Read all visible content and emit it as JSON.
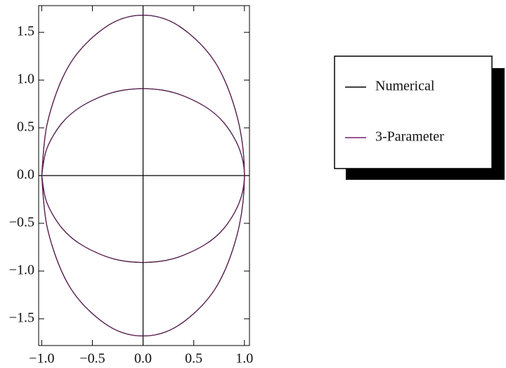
{
  "chart_data": {
    "type": "line",
    "xlim": [
      -1.03,
      1.05
    ],
    "ylim": [
      -1.78,
      1.78
    ],
    "xticks": [
      {
        "value": -1,
        "label": "−1.0"
      },
      {
        "value": -0.5,
        "label": "−0.5"
      },
      {
        "value": 0,
        "label": "0.0"
      },
      {
        "value": 0.5,
        "label": "0.5"
      },
      {
        "value": 1,
        "label": "1.0"
      }
    ],
    "yticks": [
      {
        "value": -1.5,
        "label": "−1.5"
      },
      {
        "value": -1,
        "label": "−1.0"
      },
      {
        "value": -0.5,
        "label": "−0.5"
      },
      {
        "value": 0,
        "label": "0.0"
      },
      {
        "value": 0.5,
        "label": "0.5"
      },
      {
        "value": 1,
        "label": "1.0"
      },
      {
        "value": 1.5,
        "label": "1.5"
      }
    ],
    "legend": "right",
    "series": [
      {
        "name": "Numerical",
        "color": "#000000",
        "x": [
          -1,
          -0.95,
          -0.8,
          -0.6,
          -0.3,
          0,
          0.3,
          0.6,
          0.8,
          0.95,
          1,
          0.95,
          0.8,
          0.6,
          0.3,
          0,
          -0.3,
          -0.6,
          -0.8,
          -0.95,
          -1,
          null,
          -1,
          -0.95,
          -0.8,
          -0.6,
          -0.3,
          0,
          0.3,
          0.6,
          0.8,
          0.95,
          1,
          0.95,
          0.8,
          0.6,
          0.3,
          0,
          -0.3,
          -0.6,
          -0.8,
          -0.95,
          -1
        ],
        "values": [
          0,
          0.52,
          1.01,
          1.34,
          1.6,
          1.68,
          1.6,
          1.34,
          1.01,
          0.52,
          0,
          -0.52,
          -1.01,
          -1.34,
          -1.6,
          -1.68,
          -1.6,
          -1.34,
          -1.01,
          -0.52,
          0,
          null,
          0,
          0.28,
          0.55,
          0.73,
          0.87,
          0.91,
          0.87,
          0.73,
          0.55,
          0.28,
          0,
          -0.28,
          -0.55,
          -0.73,
          -0.87,
          -0.91,
          -0.87,
          -0.73,
          -0.55,
          -0.28,
          0
        ]
      },
      {
        "name": "3-Parameter",
        "color": "#7a1f6e",
        "x": [
          -1,
          -0.95,
          -0.8,
          -0.6,
          -0.3,
          0,
          0.3,
          0.6,
          0.8,
          0.95,
          1,
          0.95,
          0.8,
          0.6,
          0.3,
          0,
          -0.3,
          -0.6,
          -0.8,
          -0.95,
          -1,
          null,
          -1,
          -0.95,
          -0.8,
          -0.6,
          -0.3,
          0,
          0.3,
          0.6,
          0.8,
          0.95,
          1,
          0.95,
          0.8,
          0.6,
          0.3,
          0,
          -0.3,
          -0.6,
          -0.8,
          -0.95,
          -1
        ],
        "values": [
          0,
          0.52,
          1.01,
          1.34,
          1.6,
          1.68,
          1.6,
          1.34,
          1.01,
          0.52,
          0,
          -0.52,
          -1.01,
          -1.34,
          -1.6,
          -1.68,
          -1.6,
          -1.34,
          -1.01,
          -0.52,
          0,
          null,
          0,
          0.28,
          0.55,
          0.73,
          0.87,
          0.91,
          0.87,
          0.73,
          0.55,
          0.28,
          0,
          -0.28,
          -0.55,
          -0.73,
          -0.87,
          -0.91,
          -0.87,
          -0.73,
          -0.55,
          -0.28,
          0
        ]
      }
    ]
  }
}
